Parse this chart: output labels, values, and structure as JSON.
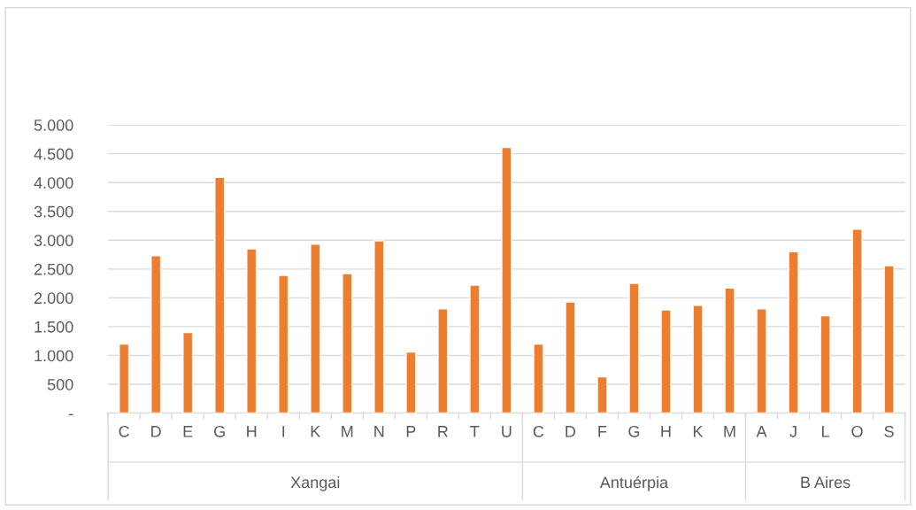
{
  "chart_data": {
    "type": "bar",
    "categories": [
      "C",
      "D",
      "E",
      "G",
      "H",
      "I",
      "K",
      "M",
      "N",
      "P",
      "R",
      "T",
      "U",
      "C",
      "D",
      "F",
      "G",
      "H",
      "K",
      "M",
      "A",
      "J",
      "L",
      "O",
      "S"
    ],
    "values": [
      1200,
      2730,
      1400,
      4090,
      2850,
      2390,
      2930,
      2420,
      2990,
      1060,
      1810,
      2220,
      4610,
      1200,
      1930,
      630,
      2250,
      1790,
      1870,
      2170,
      1810,
      2800,
      1690,
      3190,
      2560
    ],
    "color": "#ed7d31",
    "ylim": [
      0,
      5000
    ],
    "yticks": [
      {
        "value": 0,
        "label": "-"
      },
      500,
      {
        "value": 1000,
        "label": "1.000"
      },
      {
        "value": 1500,
        "label": "1.500"
      },
      {
        "value": 2000,
        "label": "2.000"
      },
      {
        "value": 2500,
        "label": "2.500"
      },
      {
        "value": 3000,
        "label": "3.000"
      },
      {
        "value": 3500,
        "label": "3.500"
      },
      {
        "value": 4000,
        "label": "4.000"
      },
      {
        "value": 4500,
        "label": "4.500"
      },
      {
        "value": 5000,
        "label": "5.000"
      }
    ],
    "grid": "y",
    "annotations": [
      "Xangai",
      "Antuérpia",
      "B Aires"
    ]
  }
}
